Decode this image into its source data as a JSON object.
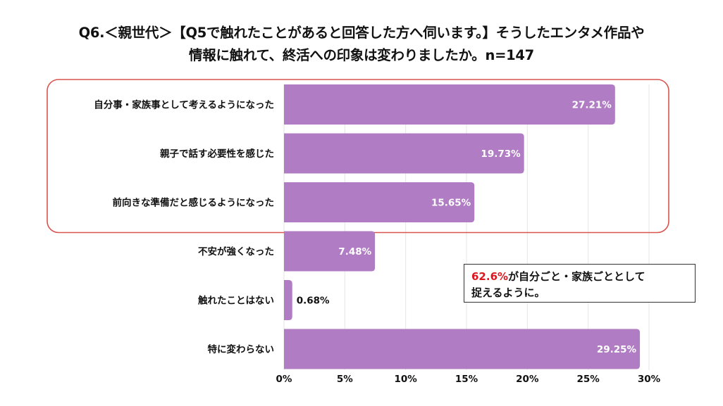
{
  "title": {
    "line1": "Q6.＜親世代＞【Q5で触れたことがあると回答した方へ伺います。】そうしたエンタメ作品や",
    "line2": "情報に触れて、終活への印象は変わりましたか。n=147"
  },
  "annotation": {
    "highlight": "62.6%",
    "text_line1": "が自分ごと・家族ごととして",
    "text_line2": "捉えるように。"
  },
  "colors": {
    "bar": "#b07cc3",
    "highlight_frame": "#d9534f",
    "grid": "#e6e6e6",
    "value_label_inside": "#ffffff",
    "value_label_outside": "#111111",
    "annotation_highlight": "#e0141e"
  },
  "chart_data": {
    "type": "bar",
    "orientation": "horizontal",
    "categories": [
      "自分事・家族事として考えるようになった",
      "親子で話す必要性を感じた",
      "前向きな準備だと感じるようになった",
      "不安が強くなった",
      "触れたことはない",
      "特に変わらない"
    ],
    "values": [
      27.21,
      19.73,
      15.65,
      7.48,
      0.68,
      29.25
    ],
    "value_labels": [
      "27.21%",
      "19.73%",
      "15.65%",
      "7.48%",
      "0.68%",
      "29.25%"
    ],
    "xlim": [
      0,
      30
    ],
    "ticks": [
      0,
      5,
      10,
      15,
      20,
      25,
      30
    ],
    "tick_labels": [
      "0%",
      "5%",
      "10%",
      "15%",
      "20%",
      "25%",
      "30%"
    ],
    "grid": true,
    "highlighted_categories": [
      0,
      1,
      2
    ]
  }
}
